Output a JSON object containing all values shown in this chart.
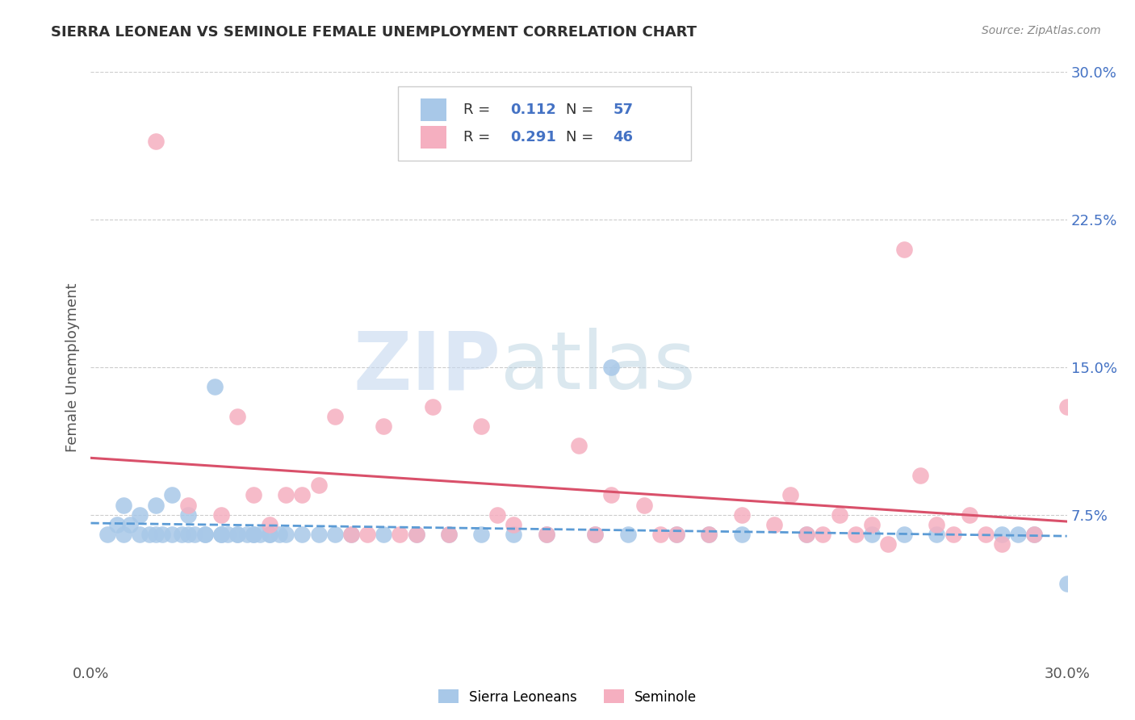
{
  "title": "SIERRA LEONEAN VS SEMINOLE FEMALE UNEMPLOYMENT CORRELATION CHART",
  "source": "Source: ZipAtlas.com",
  "ylabel": "Female Unemployment",
  "xlim": [
    0.0,
    0.3
  ],
  "ylim": [
    0.0,
    0.3
  ],
  "xtick_vals": [
    0.0,
    0.3
  ],
  "xtick_labels": [
    "0.0%",
    "30.0%"
  ],
  "ytick_vals": [
    0.075,
    0.15,
    0.225,
    0.3
  ],
  "ytick_labels": [
    "7.5%",
    "15.0%",
    "22.5%",
    "30.0%"
  ],
  "R1": "0.112",
  "N1": "57",
  "R2": "0.291",
  "N2": "46",
  "color_blue_scatter": "#a8c8e8",
  "color_pink_scatter": "#f5afc0",
  "color_blue_text": "#4472c4",
  "line_blue_color": "#5b9bd5",
  "line_pink_color": "#d9506a",
  "legend_label1": "Sierra Leoneans",
  "legend_label2": "Seminole",
  "background_color": "#ffffff",
  "grid_color": "#cccccc",
  "title_color": "#2f2f2f",
  "source_color": "#888888",
  "ylabel_color": "#555555",
  "sierra_x": [
    0.005,
    0.008,
    0.01,
    0.01,
    0.012,
    0.015,
    0.015,
    0.018,
    0.02,
    0.02,
    0.022,
    0.025,
    0.025,
    0.028,
    0.03,
    0.03,
    0.032,
    0.035,
    0.035,
    0.038,
    0.04,
    0.04,
    0.042,
    0.045,
    0.045,
    0.048,
    0.05,
    0.05,
    0.052,
    0.055,
    0.055,
    0.058,
    0.06,
    0.065,
    0.07,
    0.075,
    0.08,
    0.09,
    0.1,
    0.11,
    0.12,
    0.13,
    0.14,
    0.155,
    0.16,
    0.165,
    0.18,
    0.19,
    0.2,
    0.22,
    0.24,
    0.25,
    0.26,
    0.28,
    0.285,
    0.29,
    0.3
  ],
  "sierra_y": [
    0.065,
    0.07,
    0.08,
    0.065,
    0.07,
    0.075,
    0.065,
    0.065,
    0.08,
    0.065,
    0.065,
    0.085,
    0.065,
    0.065,
    0.065,
    0.075,
    0.065,
    0.065,
    0.065,
    0.14,
    0.065,
    0.065,
    0.065,
    0.065,
    0.065,
    0.065,
    0.065,
    0.065,
    0.065,
    0.065,
    0.065,
    0.065,
    0.065,
    0.065,
    0.065,
    0.065,
    0.065,
    0.065,
    0.065,
    0.065,
    0.065,
    0.065,
    0.065,
    0.065,
    0.15,
    0.065,
    0.065,
    0.065,
    0.065,
    0.065,
    0.065,
    0.065,
    0.065,
    0.065,
    0.065,
    0.065,
    0.04
  ],
  "seminole_x": [
    0.02,
    0.03,
    0.04,
    0.045,
    0.05,
    0.055,
    0.06,
    0.065,
    0.07,
    0.075,
    0.08,
    0.085,
    0.09,
    0.095,
    0.1,
    0.105,
    0.11,
    0.12,
    0.125,
    0.13,
    0.14,
    0.15,
    0.155,
    0.16,
    0.17,
    0.175,
    0.18,
    0.19,
    0.2,
    0.21,
    0.215,
    0.22,
    0.225,
    0.23,
    0.235,
    0.24,
    0.245,
    0.25,
    0.255,
    0.26,
    0.265,
    0.27,
    0.275,
    0.28,
    0.29,
    0.3
  ],
  "seminole_y": [
    0.265,
    0.08,
    0.075,
    0.125,
    0.085,
    0.07,
    0.085,
    0.085,
    0.09,
    0.125,
    0.065,
    0.065,
    0.12,
    0.065,
    0.065,
    0.13,
    0.065,
    0.12,
    0.075,
    0.07,
    0.065,
    0.11,
    0.065,
    0.085,
    0.08,
    0.065,
    0.065,
    0.065,
    0.075,
    0.07,
    0.085,
    0.065,
    0.065,
    0.075,
    0.065,
    0.07,
    0.06,
    0.21,
    0.095,
    0.07,
    0.065,
    0.075,
    0.065,
    0.06,
    0.065,
    0.13
  ],
  "watermark_zip": "ZIP",
  "watermark_atlas": "atlas"
}
